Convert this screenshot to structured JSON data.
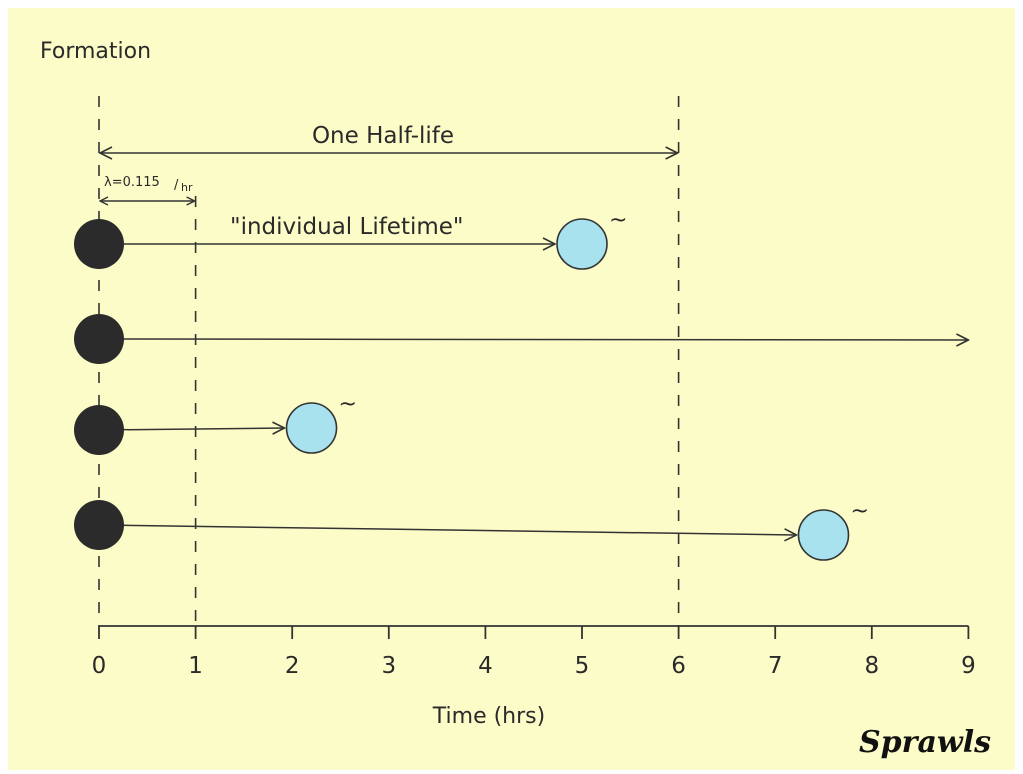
{
  "title": "Formation",
  "half_life_label": "One Half-life",
  "lambda_label": "λ=0.115",
  "lambda_unit": "hr",
  "lifetime_label": "\"individual Lifetime\"",
  "xlabel": "Time (hrs)",
  "ticks": [
    "0",
    "1",
    "2",
    "3",
    "4",
    "5",
    "6",
    "7",
    "8",
    "9"
  ],
  "decay_mark": "~",
  "signature": "Sprawls",
  "colors": {
    "background": "#fcfcc8",
    "atom_undecayed": "#2b2b2b",
    "atom_decayed": "#a8e2ee",
    "line": "#333333"
  },
  "atoms": [
    {
      "decay_time_hrs": 5.0,
      "decayed": true
    },
    {
      "decay_time_hrs": 9.0,
      "decayed": false
    },
    {
      "decay_time_hrs": 2.2,
      "decayed": true
    },
    {
      "decay_time_hrs": 7.5,
      "decayed": true
    }
  ],
  "half_life_hrs": 6,
  "lambda_span_hrs": 1
}
